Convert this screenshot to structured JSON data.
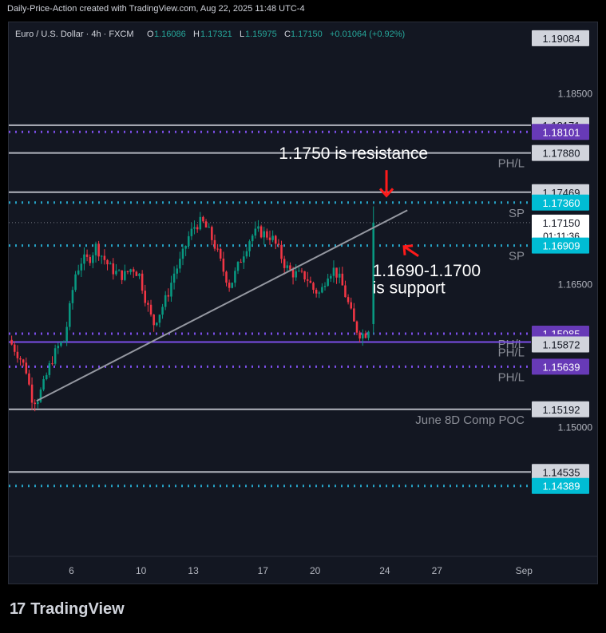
{
  "header": {
    "caption": "Daily-Price-Action created with TradingView.com, Aug 22, 2025 11:48 UTC-4"
  },
  "legend": {
    "symbol": "Euro / U.S. Dollar · 4h · FXCM",
    "o_label": "O",
    "o": "1.16086",
    "h_label": "H",
    "h": "1.17321",
    "l_label": "L",
    "l": "1.15975",
    "c_label": "C",
    "c": "1.17150",
    "change": "+0.01064 (+0.92%)"
  },
  "colors": {
    "bg": "#131722",
    "up": "#089981",
    "down": "#f23645",
    "grey_line": "#9598a1",
    "purple": "#7b4ee8",
    "teal": "#26a4c7",
    "annotation": "#ffffff",
    "arrow": "#ff1a1a"
  },
  "chart_data": {
    "type": "candlestick",
    "instrument": "Euro / U.S. Dollar",
    "timeframe": "4h",
    "x_ticks": [
      {
        "label": "6",
        "day": 6
      },
      {
        "label": "10",
        "day": 10
      },
      {
        "label": "13",
        "day": 13
      },
      {
        "label": "17",
        "day": 17
      },
      {
        "label": "20",
        "day": 20
      },
      {
        "label": "24",
        "day": 24
      },
      {
        "label": "27",
        "day": 27
      },
      {
        "label": "Sep",
        "day": 32
      }
    ],
    "x_range": [
      2.4,
      32.4
    ],
    "y_ticks": [
      "1.18500",
      "1.16500",
      "1.15000"
    ],
    "ylim": [
      1.1365,
      1.1925
    ],
    "close_path": [
      [
        2.4,
        1.1592
      ],
      [
        3.0,
        1.1575
      ],
      [
        3.4,
        1.156
      ],
      [
        3.7,
        1.1532
      ],
      [
        4.0,
        1.1528
      ],
      [
        4.4,
        1.1545
      ],
      [
        4.8,
        1.1568
      ],
      [
        5.2,
        1.1584
      ],
      [
        5.6,
        1.1592
      ],
      [
        5.9,
        1.1625
      ],
      [
        6.2,
        1.166
      ],
      [
        6.6,
        1.1676
      ],
      [
        7.0,
        1.1676
      ],
      [
        7.4,
        1.169
      ],
      [
        7.8,
        1.1679
      ],
      [
        8.2,
        1.1668
      ],
      [
        8.6,
        1.1662
      ],
      [
        9.0,
        1.1659
      ],
      [
        9.5,
        1.1668
      ],
      [
        9.9,
        1.166
      ],
      [
        10.3,
        1.1632
      ],
      [
        10.7,
        1.1608
      ],
      [
        11.1,
        1.1622
      ],
      [
        11.5,
        1.1638
      ],
      [
        11.9,
        1.1662
      ],
      [
        12.3,
        1.1676
      ],
      [
        12.7,
        1.1699
      ],
      [
        13.1,
        1.1712
      ],
      [
        13.5,
        1.1716
      ],
      [
        13.9,
        1.1705
      ],
      [
        14.3,
        1.1688
      ],
      [
        14.7,
        1.1666
      ],
      [
        15.1,
        1.1648
      ],
      [
        15.5,
        1.1666
      ],
      [
        15.9,
        1.1684
      ],
      [
        16.3,
        1.17
      ],
      [
        16.7,
        1.1706
      ],
      [
        17.1,
        1.1703
      ],
      [
        17.5,
        1.17
      ],
      [
        17.9,
        1.1686
      ],
      [
        18.3,
        1.1669
      ],
      [
        18.7,
        1.1662
      ],
      [
        19.1,
        1.166
      ],
      [
        19.5,
        1.1658
      ],
      [
        19.9,
        1.1645
      ],
      [
        20.3,
        1.164
      ],
      [
        20.7,
        1.1662
      ],
      [
        21.1,
        1.1666
      ],
      [
        21.5,
        1.1652
      ],
      [
        21.9,
        1.163
      ],
      [
        22.3,
        1.1605
      ],
      [
        22.6,
        1.1598
      ],
      [
        22.9,
        1.1599
      ],
      [
        23.1,
        1.1606
      ],
      [
        23.2,
        1.164
      ],
      [
        23.35,
        1.1715
      ]
    ],
    "last_candle": {
      "open": 1.16086,
      "high": 1.17321,
      "low": 1.15975,
      "close": 1.1715
    },
    "price_levels": [
      {
        "value": 1.19084,
        "label": "1.19084",
        "style": "grey-tag",
        "line": false
      },
      {
        "value": 1.18171,
        "label": "1.18171",
        "style": "grey",
        "line": "solid"
      },
      {
        "value": 1.18101,
        "label": "1.18101",
        "style": "purple",
        "line": "dotted"
      },
      {
        "value": 1.1788,
        "label": "1.17880",
        "style": "grey",
        "line": "solid",
        "side_text": "PH/L"
      },
      {
        "value": 1.17469,
        "label": "1.17469",
        "style": "grey",
        "line": "solid"
      },
      {
        "value": 1.1736,
        "label": "1.17360",
        "style": "teal",
        "line": "dotted",
        "side_text": "SP"
      },
      {
        "value": 1.1715,
        "label": "1.17150",
        "style": "white",
        "line": "faint",
        "countdown": "01:11:36"
      },
      {
        "value": 1.16909,
        "label": "1.16909",
        "style": "teal",
        "line": "dotted",
        "side_text": "SP"
      },
      {
        "value": 1.15985,
        "label": "1.15985",
        "style": "purple",
        "line": "dotted",
        "side_text": "PH/L"
      },
      {
        "value": 1.15898,
        "label": "1.15898",
        "style": "purple",
        "line": "solid",
        "side_text": "PH/L"
      },
      {
        "value": 1.15872,
        "label": "1.15872",
        "style": "grey",
        "line": "none"
      },
      {
        "value": 1.15639,
        "label": "1.15639",
        "style": "purple",
        "line": "dotted",
        "side_text": "PH/L"
      },
      {
        "value": 1.15192,
        "label": "1.15192",
        "style": "grey",
        "line": "solid",
        "side_text": "June 8D Comp POC"
      },
      {
        "value": 1.14535,
        "label": "1.14535",
        "style": "grey",
        "line": "solid"
      },
      {
        "value": 1.14389,
        "label": "1.14389",
        "style": "teal",
        "line": "dotted"
      }
    ],
    "trendline": {
      "start": [
        4.0,
        1.1528
      ],
      "end": [
        25.3,
        1.1728
      ]
    },
    "annotations": [
      {
        "text": "1.1750 is resistance",
        "day": 22.2,
        "price": 1.1782
      },
      {
        "text": "1.1690-1.1700",
        "day": 23.3,
        "price": 1.1659
      },
      {
        "text": "is support",
        "day": 23.3,
        "price": 1.1641
      }
    ],
    "arrows": [
      {
        "name": "resistance-arrow",
        "day": 24.1,
        "from_price": 1.177,
        "to_price": 1.1743
      },
      {
        "name": "support-arrow",
        "day": 25.2,
        "from_price": 1.1685,
        "to_price": 1.169
      }
    ]
  },
  "branding": {
    "mark": "17",
    "name": "TradingView"
  }
}
